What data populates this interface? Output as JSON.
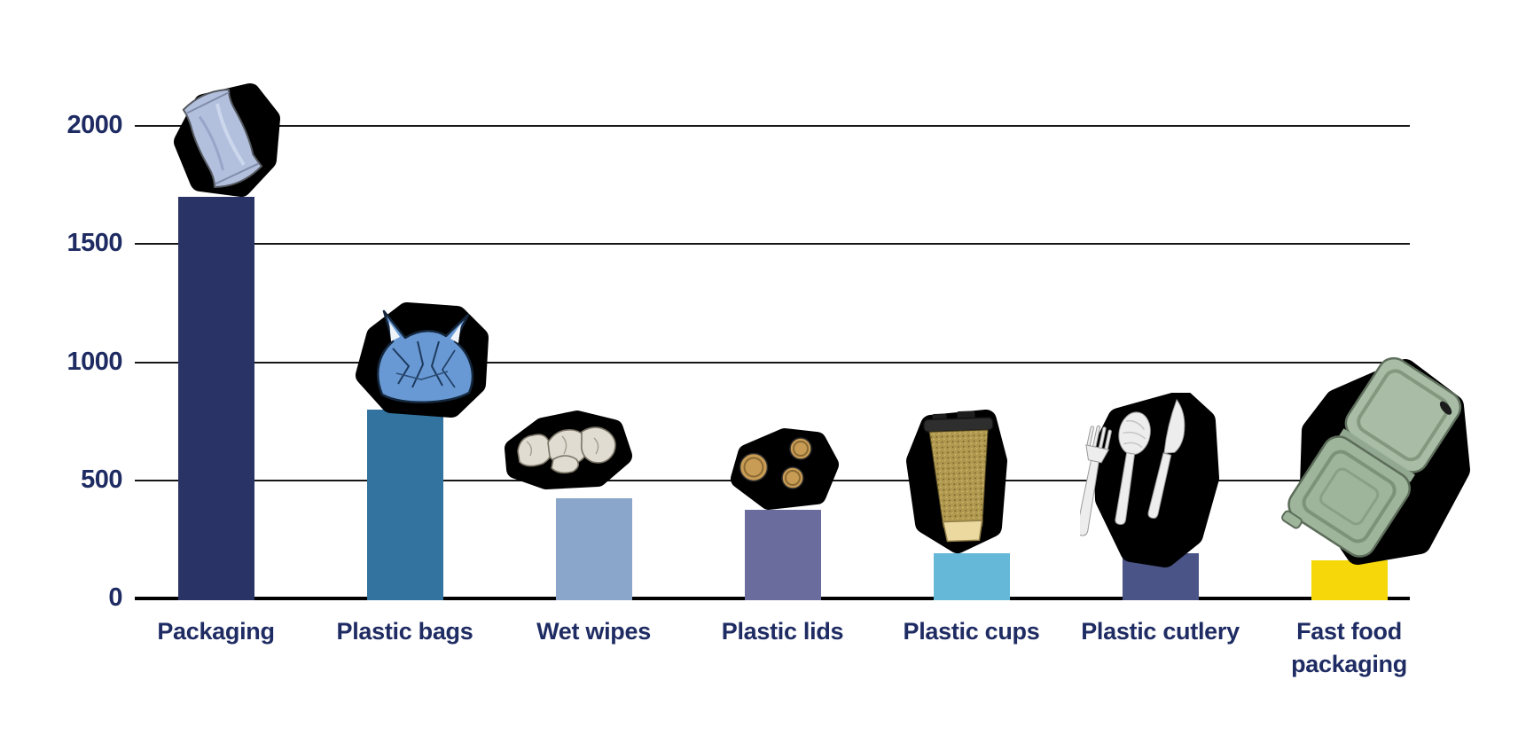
{
  "chart_data": {
    "type": "bar",
    "title": "",
    "xlabel": "",
    "ylabel": "",
    "categories": [
      "Packaging",
      "Plastic bags",
      "Wet wipes",
      "Plastic lids",
      "Plastic cups",
      "Plastic cutlery",
      "Fast food packaging"
    ],
    "values": [
      1700,
      800,
      425,
      375,
      190,
      190,
      160
    ],
    "bar_colors": [
      "#2a3365",
      "#33739f",
      "#8ba6cb",
      "#696c9d",
      "#65b8d8",
      "#4a5487",
      "#f5d70a"
    ],
    "yticks": [
      0,
      500,
      1000,
      1500,
      2000
    ],
    "ylim": [
      0,
      2070
    ],
    "grid": "horizontal",
    "legend_position": "none",
    "text_color": "#1f2c63",
    "gridline_color": "#161616",
    "zero_axis_color": "#000000",
    "icons": [
      "packaging-icon",
      "plastic-bag-icon",
      "wet-wipes-icon",
      "plastic-lids-icon",
      "plastic-cup-icon",
      "plastic-cutlery-icon",
      "fast-food-packaging-icon"
    ]
  }
}
